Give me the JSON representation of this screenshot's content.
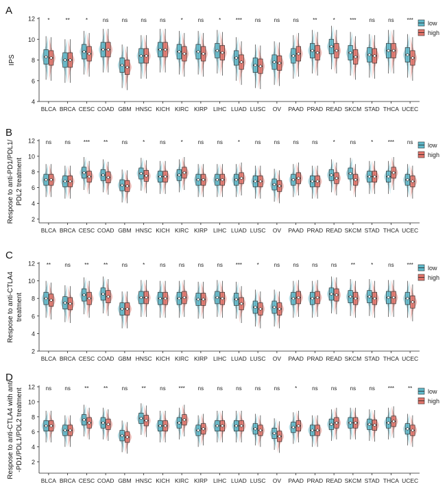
{
  "colors": {
    "low": "#5fb8c9",
    "high": "#e0736a",
    "axis": "#222222"
  },
  "legend": {
    "low": "low",
    "high": "high"
  },
  "chart_data": [
    {
      "type": "violin-box",
      "panel_label": "A",
      "ylabel": [
        "IPS"
      ],
      "ylim": [
        4,
        12
      ],
      "yticks": [
        4,
        6,
        8,
        10,
        12
      ],
      "categories": [
        "BLCA",
        "BRCA",
        "CESC",
        "COAD",
        "GBM",
        "HNSC",
        "KICH",
        "KIRC",
        "KIRP",
        "LIHC",
        "LUAD",
        "LUSC",
        "OV",
        "PAAD",
        "PRAD",
        "READ",
        "SKCM",
        "STAD",
        "THCA",
        "UCEC"
      ],
      "significance": [
        "*",
        "**",
        "*",
        "ns",
        "ns",
        "ns",
        "ns",
        "*",
        "ns",
        "*",
        "***",
        "ns",
        "ns",
        "ns",
        "**",
        "*",
        "***",
        "ns",
        "ns",
        "***"
      ],
      "series": [
        {
          "name": "low",
          "medians": [
            8.3,
            8.0,
            8.8,
            9.0,
            7.5,
            8.4,
            9.0,
            8.8,
            8.8,
            8.9,
            8.2,
            7.5,
            7.8,
            8.4,
            8.9,
            9.3,
            8.7,
            8.5,
            8.9,
            8.5
          ]
        },
        {
          "name": "high",
          "medians": [
            8.2,
            8.0,
            8.6,
            9.0,
            7.3,
            8.4,
            9.0,
            8.6,
            8.6,
            8.7,
            7.8,
            7.4,
            7.7,
            8.6,
            8.7,
            8.9,
            8.3,
            8.4,
            8.9,
            8.2
          ]
        }
      ]
    },
    {
      "type": "violin-box",
      "panel_label": "B",
      "ylabel": [
        "Respose to anti-PD1/PDL1/",
        "PDL2 treatment"
      ],
      "ylim": [
        1.5,
        12
      ],
      "yticks": [
        2,
        4,
        6,
        8,
        10,
        12
      ],
      "categories": [
        "BLCA",
        "BRCA",
        "CESC",
        "COAD",
        "GBM",
        "HNSC",
        "KICH",
        "KIRC",
        "KIRP",
        "LIHC",
        "LUAD",
        "LUSC",
        "OV",
        "PAAD",
        "PRAD",
        "READ",
        "SKCM",
        "STAD",
        "THCA",
        "UCEC"
      ],
      "significance": [
        "ns",
        "ns",
        "***",
        "**",
        "ns",
        "*",
        "ns",
        "*",
        "ns",
        "ns",
        "*",
        "ns",
        "ns",
        "ns",
        "ns",
        "*",
        "ns",
        "*",
        "***",
        "ns"
      ],
      "series": [
        {
          "name": "low",
          "medians": [
            7.0,
            6.8,
            7.9,
            7.6,
            6.3,
            7.8,
            7.4,
            7.6,
            7.0,
            7.0,
            7.0,
            6.8,
            6.4,
            7.0,
            6.8,
            7.6,
            7.8,
            7.4,
            7.4,
            7.0
          ]
        },
        {
          "name": "high",
          "medians": [
            7.0,
            6.8,
            7.4,
            7.3,
            6.2,
            7.5,
            7.4,
            7.9,
            7.0,
            7.0,
            7.2,
            6.8,
            6.2,
            7.2,
            6.8,
            7.2,
            7.0,
            7.4,
            7.9,
            6.8
          ]
        }
      ]
    },
    {
      "type": "violin-box",
      "panel_label": "C",
      "ylabel": [
        "Respose to anti-CTLA4",
        "treatment"
      ],
      "ylim": [
        2,
        12
      ],
      "yticks": [
        2,
        4,
        6,
        8,
        10,
        12
      ],
      "categories": [
        "BLCA",
        "BRCA",
        "CESC",
        "COAD",
        "GBM",
        "HNSC",
        "KICH",
        "KIRC",
        "KIRP",
        "LIHC",
        "LUAD",
        "LUSC",
        "OV",
        "PAAD",
        "PRAD",
        "READ",
        "SKCM",
        "STAD",
        "THCA",
        "UCEC"
      ],
      "significance": [
        "**",
        "ns",
        "**",
        "**",
        "ns",
        "*",
        "ns",
        "ns",
        "ns",
        "ns",
        "***",
        "*",
        "ns",
        "ns",
        "ns",
        "ns",
        "**",
        "*",
        "ns",
        "***"
      ],
      "series": [
        {
          "name": "low",
          "medians": [
            8.0,
            7.5,
            8.4,
            8.5,
            6.8,
            8.1,
            8.0,
            8.0,
            7.9,
            8.1,
            7.9,
            7.0,
            7.0,
            8.0,
            8.0,
            8.5,
            8.2,
            8.2,
            8.1,
            8.0
          ]
        },
        {
          "name": "high",
          "medians": [
            7.8,
            7.4,
            8.0,
            8.2,
            6.8,
            8.1,
            8.0,
            8.1,
            7.9,
            8.0,
            7.4,
            6.8,
            6.8,
            8.1,
            8.1,
            8.4,
            8.0,
            8.0,
            8.1,
            7.6
          ]
        }
      ]
    },
    {
      "type": "violin-box",
      "panel_label": "D",
      "ylabel": [
        "Respose to anti-CTLA4 with anti",
        "-PD1/PDL1/PDL2 treatment"
      ],
      "ylim": [
        0.5,
        12
      ],
      "yticks": [
        2,
        4,
        6,
        8,
        10,
        12
      ],
      "categories": [
        "BLCA",
        "BRCA",
        "CESC",
        "COAD",
        "GBM",
        "HNSC",
        "KICH",
        "KIRC",
        "KIRP",
        "LIHC",
        "LUAD",
        "LUSC",
        "OV",
        "PAAD",
        "PRAD",
        "READ",
        "SKCM",
        "STAD",
        "THCA",
        "UCEC"
      ],
      "significance": [
        "ns",
        "ns",
        "**",
        "**",
        "ns",
        "**",
        "ns",
        "***",
        "ns",
        "ns",
        "ns",
        "ns",
        "ns",
        "*",
        "ns",
        "ns",
        "ns",
        "ns",
        "***",
        "**"
      ],
      "series": [
        {
          "name": "low",
          "medians": [
            6.8,
            6.2,
            7.6,
            7.2,
            5.5,
            7.8,
            6.8,
            7.2,
            6.2,
            6.8,
            6.8,
            6.4,
            5.8,
            6.6,
            6.2,
            7.0,
            7.2,
            7.0,
            7.2,
            6.4
          ]
        },
        {
          "name": "high",
          "medians": [
            6.8,
            6.2,
            7.2,
            7.0,
            5.3,
            7.5,
            6.8,
            7.6,
            6.4,
            6.8,
            6.8,
            6.2,
            5.4,
            6.8,
            6.2,
            7.2,
            7.2,
            6.9,
            7.4,
            6.2
          ]
        }
      ]
    }
  ]
}
